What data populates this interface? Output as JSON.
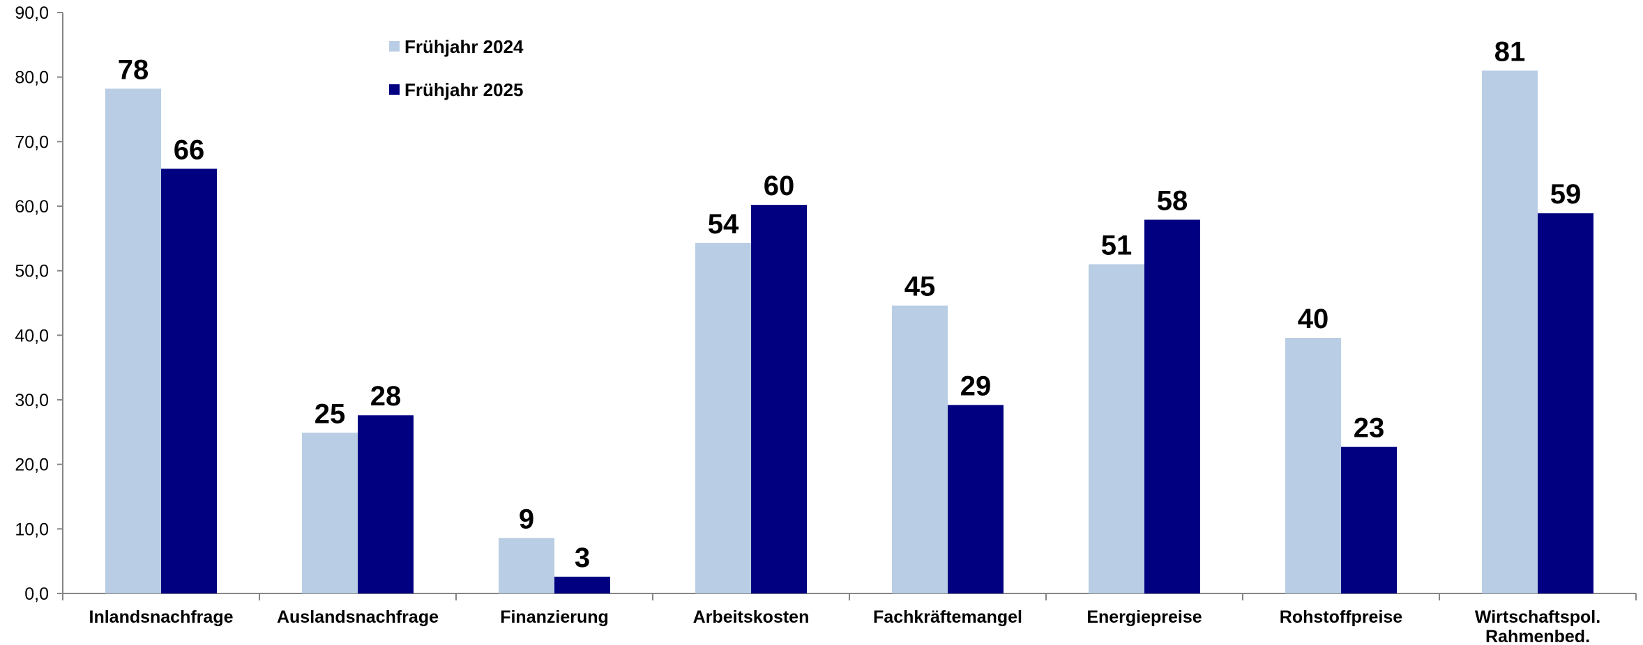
{
  "chart_data": {
    "type": "bar",
    "title": "",
    "xlabel": "",
    "ylabel": "",
    "ylim": [
      0,
      90
    ],
    "yticks": [
      "0,0",
      "10,0",
      "20,0",
      "30,0",
      "40,0",
      "50,0",
      "60,0",
      "70,0",
      "80,0",
      "90,0"
    ],
    "grid": false,
    "legend_position": "top-left",
    "categories": [
      [
        "Inlandsnachfrage"
      ],
      [
        "Auslandsnachfrage"
      ],
      [
        "Finanzierung"
      ],
      [
        "Arbeitskosten"
      ],
      [
        "Fachkräftemangel"
      ],
      [
        "Energiepreise"
      ],
      [
        "Rohstoffpreise"
      ],
      [
        "Wirtschaftspol.",
        "Rahmenbed."
      ]
    ],
    "series": [
      {
        "name": "Frühjahr 2024",
        "color": "#b9cde4",
        "values": [
          78.2,
          24.9,
          8.6,
          54.3,
          44.6,
          51.0,
          39.6,
          81.0
        ],
        "labels": [
          "78",
          "25",
          "9",
          "54",
          "45",
          "51",
          "40",
          "81"
        ]
      },
      {
        "name": "Frühjahr 2025",
        "color": "#000080",
        "values": [
          65.8,
          27.6,
          2.6,
          60.2,
          29.2,
          57.9,
          22.7,
          58.9
        ],
        "labels": [
          "66",
          "28",
          "3",
          "60",
          "29",
          "58",
          "23",
          "59"
        ]
      }
    ]
  }
}
